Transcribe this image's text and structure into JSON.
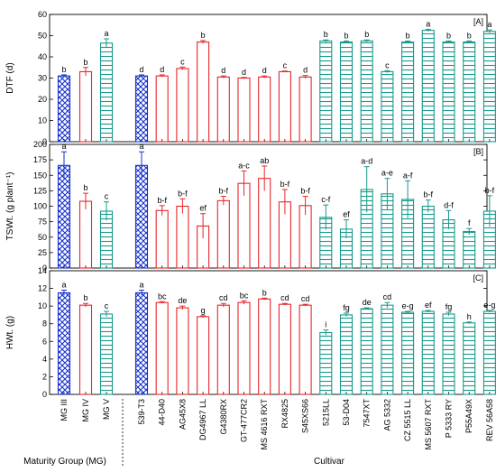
{
  "chart_data": {
    "type": "bar",
    "categories": [
      "MG III",
      "MG IV",
      "MG V",
      "539-T3",
      "44-D40",
      "AG45X8",
      "DG4967 LL",
      "G4380RX",
      "GT-477CR2",
      "MS 4616 RXT",
      "RX4825",
      "S45XS66",
      "5215LL",
      "53-D04",
      "7547XT",
      "AG 5332",
      "CZ 5515 LL",
      "MS 5607 RXT",
      "P 5333 RY",
      "P55A49X",
      "REV 56A58"
    ],
    "groups": [
      {
        "label": "Maturity Group (MG)",
        "members": [
          "MG III",
          "MG IV",
          "MG V"
        ]
      },
      {
        "label": "Cultivar",
        "members": [
          "539-T3",
          "44-D40",
          "AG45X8",
          "DG4967 LL",
          "G4380RX",
          "GT-477CR2",
          "MS 4616 RXT",
          "RX4825",
          "S45XS66",
          "5215LL",
          "53-D04",
          "7547XT",
          "AG 5332",
          "CZ 5515 LL",
          "MS 5607 RXT",
          "P 5333 RY",
          "P55A49X",
          "REV 56A58"
        ]
      }
    ],
    "colors": {
      "mg3": "#1a33cc",
      "mg4": "#e8262a",
      "mg5": "#1a9a8c"
    },
    "category_colors": [
      "mg3",
      "mg4",
      "mg5",
      "mg3",
      "mg4",
      "mg4",
      "mg4",
      "mg4",
      "mg4",
      "mg4",
      "mg4",
      "mg4",
      "mg5",
      "mg5",
      "mg5",
      "mg5",
      "mg5",
      "mg5",
      "mg5",
      "mg5",
      "mg5"
    ],
    "panels": [
      {
        "tag": "[A]",
        "ylabel": "DTF (d)",
        "ylim": [
          0,
          60
        ],
        "yticks": [
          0,
          10,
          20,
          30,
          40,
          50,
          60
        ],
        "values": [
          31,
          33,
          46.5,
          31,
          31,
          34.5,
          47,
          30.5,
          30,
          30.5,
          33,
          30.5,
          47.5,
          47,
          47.5,
          33,
          47,
          52.5,
          47,
          47,
          52
        ],
        "errors": [
          0.5,
          2,
          2,
          0.5,
          0.5,
          0.7,
          0.7,
          0.5,
          0.3,
          0.5,
          0.3,
          0.7,
          0.5,
          0.5,
          0.5,
          0.5,
          0.5,
          0.5,
          0.5,
          0.5,
          0.7
        ],
        "letters": [
          "b",
          "b",
          "a",
          "d",
          "d",
          "c",
          "b",
          "d",
          "d",
          "d",
          "c",
          "d",
          "b",
          "b",
          "b",
          "c",
          "b",
          "a",
          "b",
          "b",
          "a"
        ]
      },
      {
        "tag": "[B]",
        "ylabel": "TSWt. (g plant⁻¹)",
        "ylim": [
          0,
          200
        ],
        "yticks": [
          0,
          25,
          50,
          75,
          100,
          125,
          150,
          175,
          200
        ],
        "values": [
          166,
          108,
          92,
          166,
          93,
          100,
          68,
          109,
          137,
          145,
          107,
          101,
          82,
          63,
          127,
          120,
          111,
          100,
          78,
          59,
          92
        ],
        "errors": [
          22,
          13,
          15,
          22,
          8,
          12,
          20,
          7,
          20,
          20,
          20,
          15,
          20,
          15,
          37,
          25,
          30,
          10,
          15,
          5,
          25
        ],
        "letters": [
          "a",
          "b",
          "c",
          "a",
          "b-f",
          "b-f",
          "ef",
          "b-f",
          "a-c",
          "ab",
          "b-f",
          "b-f",
          "c-f",
          "ef",
          "a-d",
          "a-e",
          "a-f",
          "b-f",
          "d-f",
          "f",
          "b-f"
        ]
      },
      {
        "tag": "[C]",
        "ylabel": "HWt. (g)",
        "ylim": [
          0,
          14
        ],
        "yticks": [
          0,
          2,
          4,
          6,
          8,
          10,
          12,
          14
        ],
        "values": [
          11.5,
          10.1,
          9.1,
          11.5,
          10.4,
          9.8,
          8.8,
          10.1,
          10.4,
          10.8,
          10.2,
          10.1,
          7.0,
          9.0,
          9.7,
          10.1,
          9.3,
          9.4,
          9.1,
          8.1,
          9.4
        ],
        "errors": [
          0.3,
          0.2,
          0.3,
          0.3,
          0.1,
          0.2,
          0.1,
          0.2,
          0.2,
          0.1,
          0.1,
          0.1,
          0.3,
          0.2,
          0.1,
          0.3,
          0.1,
          0.1,
          0.2,
          0.1,
          0.1
        ],
        "letters": [
          "a",
          "b",
          "c",
          "a",
          "bc",
          "de",
          "g",
          "cd",
          "bc",
          "b",
          "cd",
          "cd",
          "i",
          "fg",
          "de",
          "cd",
          "e-g",
          "ef",
          "fg",
          "h",
          "e-g"
        ]
      }
    ]
  }
}
